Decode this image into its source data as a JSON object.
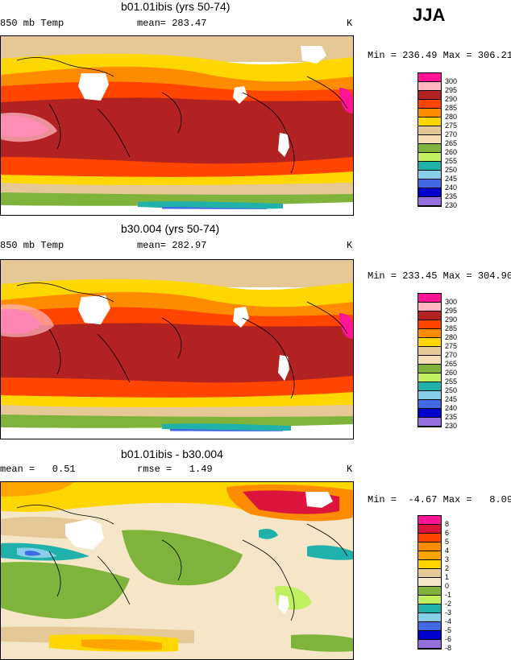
{
  "season": "JJA",
  "panels": [
    {
      "title": "b01.01ibis (yrs 50-74)",
      "left_label": "850 mb Temp",
      "center_label": "mean= 283.47",
      "units": "K",
      "stats": "Min = 236.49 Max = 306.21",
      "kind": "abs"
    },
    {
      "title": "b30.004 (yrs 50-74)",
      "left_label": "850 mb Temp",
      "center_label": "mean= 282.97",
      "units": "K",
      "stats": "Min = 233.45 Max = 304.90",
      "kind": "abs"
    },
    {
      "title": "b01.01ibis - b30.004",
      "left_label": "mean =   0.51",
      "center_label": "rmse =   1.49",
      "units": "K",
      "stats": "Min =  -4.67 Max =   8.09",
      "kind": "diff"
    }
  ],
  "legend_abs": {
    "labels": [
      "300",
      "295",
      "290",
      "285",
      "280",
      "275",
      "270",
      "265",
      "260",
      "255",
      "250",
      "245",
      "240",
      "235",
      "230"
    ],
    "colors": [
      "#ff1493",
      "#ffb6c1",
      "#b22222",
      "#ff4500",
      "#ff8c00",
      "#ffd700",
      "#e6c896",
      "#f5deb3",
      "#7fb33b",
      "#c0f060",
      "#20b2aa",
      "#87ceeb",
      "#4169e1",
      "#0000cd",
      "#9370db"
    ]
  },
  "legend_diff": {
    "labels": [
      "8",
      "6",
      "5",
      "4",
      "3",
      "2",
      "1",
      "0",
      "-1",
      "-2",
      "-3",
      "-4",
      "-5",
      "-6",
      "-8"
    ],
    "colors": [
      "#ff1493",
      "#dc143c",
      "#ff4500",
      "#ff8c00",
      "#ffa500",
      "#ffd700",
      "#e6c896",
      "#f5e6c8",
      "#7fb33b",
      "#c0f060",
      "#20b2aa",
      "#87ceeb",
      "#4169e1",
      "#0000cd",
      "#9370db"
    ]
  }
}
